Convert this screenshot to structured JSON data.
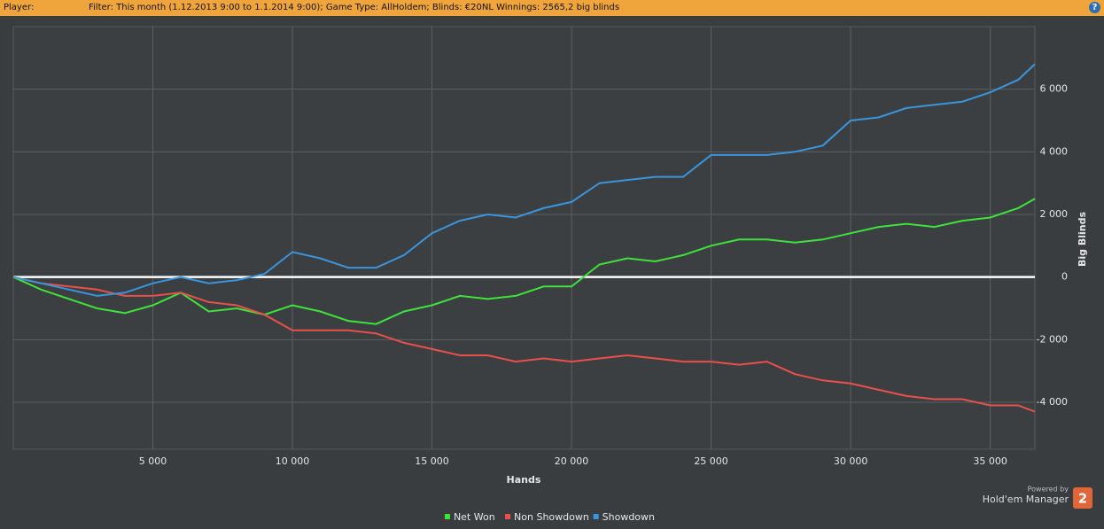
{
  "header": {
    "player_label": "Player:",
    "filter_text": "Filter:  This month (1.12.2013 9:00 to 1.1.2014 9:00); Game Type: AllHoldem; Blinds: €20NL Winnings:  2565,2 big blinds",
    "help_icon": "?"
  },
  "branding": {
    "powered_by": "Powered by",
    "product": "Hold'em Manager",
    "version": "2"
  },
  "chart_data": {
    "type": "line",
    "x_label": "Hands",
    "y_label": "Big Blinds",
    "x": [
      0,
      1000,
      2000,
      3000,
      4000,
      5000,
      6000,
      7000,
      8000,
      9000,
      10000,
      11000,
      12000,
      13000,
      14000,
      15000,
      16000,
      17000,
      18000,
      19000,
      20000,
      21000,
      22000,
      23000,
      24000,
      25000,
      26000,
      27000,
      28000,
      29000,
      30000,
      31000,
      32000,
      33000,
      34000,
      35000,
      36000,
      36600
    ],
    "series": [
      {
        "name": "Net Won",
        "color": "#3ee23a",
        "values": [
          0,
          -400,
          -700,
          -1000,
          -1150,
          -900,
          -500,
          -1100,
          -1000,
          -1200,
          -900,
          -1100,
          -1400,
          -1500,
          -1100,
          -900,
          -600,
          -700,
          -600,
          -300,
          -300,
          400,
          600,
          500,
          700,
          1000,
          1200,
          1200,
          1100,
          1200,
          1400,
          1600,
          1700,
          1600,
          1800,
          1900,
          2200,
          2500
        ]
      },
      {
        "name": "Non Showdown",
        "color": "#e8504a",
        "values": [
          0,
          -200,
          -300,
          -400,
          -600,
          -600,
          -500,
          -800,
          -900,
          -1200,
          -1700,
          -1700,
          -1700,
          -1800,
          -2100,
          -2300,
          -2500,
          -2500,
          -2700,
          -2600,
          -2700,
          -2600,
          -2500,
          -2600,
          -2700,
          -2700,
          -2800,
          -2700,
          -3100,
          -3300,
          -3400,
          -3600,
          -3800,
          -3900,
          -3900,
          -4100,
          -4100,
          -4300
        ]
      },
      {
        "name": "Showdown",
        "color": "#3a95dc",
        "values": [
          0,
          -200,
          -400,
          -600,
          -500,
          -200,
          0,
          -200,
          -100,
          100,
          800,
          600,
          300,
          300,
          700,
          1400,
          1800,
          2000,
          1900,
          2200,
          2400,
          3000,
          3100,
          3200,
          3200,
          3900,
          3900,
          3900,
          4000,
          4200,
          5000,
          5100,
          5400,
          5500,
          5600,
          5900,
          6300,
          6800
        ]
      }
    ],
    "xlim": [
      0,
      36600
    ],
    "ylim": [
      -5500,
      8000
    ],
    "xticks": [
      {
        "value": 5000,
        "label": "5 000"
      },
      {
        "value": 10000,
        "label": "10 000"
      },
      {
        "value": 15000,
        "label": "15 000"
      },
      {
        "value": 20000,
        "label": "20 000"
      },
      {
        "value": 25000,
        "label": "25 000"
      },
      {
        "value": 30000,
        "label": "30 000"
      },
      {
        "value": 35000,
        "label": "35 000"
      }
    ],
    "yticks": [
      {
        "value": -4000,
        "label": "-4 000"
      },
      {
        "value": -2000,
        "label": "-2 000"
      },
      0,
      {
        "value": 2000,
        "label": "2 000"
      },
      {
        "value": 4000,
        "label": "4 000"
      },
      {
        "value": 6000,
        "label": "6 000"
      }
    ],
    "grid": true,
    "highlight_zero": true,
    "legend": "bottom"
  }
}
